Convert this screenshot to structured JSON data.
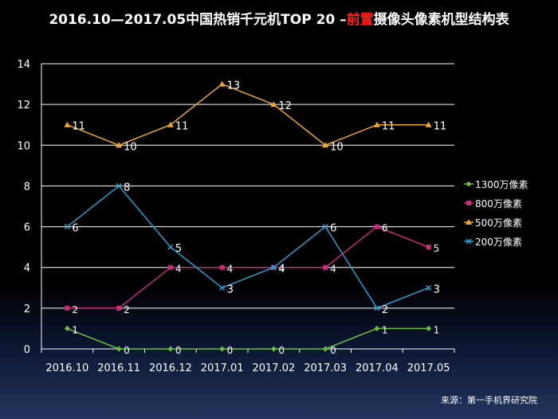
{
  "title": {
    "part1": "2016.10—2017.05中国热销千元机TOP 20 –",
    "highlight": "前置",
    "part2": "摄像头像素机型结构表",
    "highlight_color": "#ff2020"
  },
  "source": "来源：第一手机界研究院",
  "colors": {
    "background": "#000000",
    "grid": "#ffffff",
    "text": "#ffffff"
  },
  "chart_data": {
    "type": "line",
    "categories": [
      "2016.10",
      "2016.11",
      "2016.12",
      "2017.01",
      "2017.02",
      "2017.03",
      "2017.04",
      "2017.05"
    ],
    "ylim": [
      0,
      14
    ],
    "yticks": [
      0,
      2,
      4,
      6,
      8,
      10,
      12,
      14
    ],
    "grid": true,
    "legend_position": "right",
    "series": [
      {
        "name": "1300万像素",
        "values": [
          1,
          0,
          0,
          0,
          0,
          0,
          1,
          1
        ],
        "color": "#6abf40",
        "marker": "diamond"
      },
      {
        "name": "800万像素",
        "values": [
          2,
          2,
          4,
          4,
          4,
          4,
          6,
          5
        ],
        "color": "#cc2a7a",
        "marker": "square"
      },
      {
        "name": "500万像素",
        "values": [
          11,
          10,
          11,
          13,
          12,
          10,
          11,
          11
        ],
        "color": "#f0a830",
        "marker": "triangle"
      },
      {
        "name": "200万像素",
        "values": [
          6,
          8,
          5,
          3,
          4,
          6,
          2,
          3
        ],
        "color": "#2a9fd0",
        "marker": "x"
      }
    ]
  }
}
